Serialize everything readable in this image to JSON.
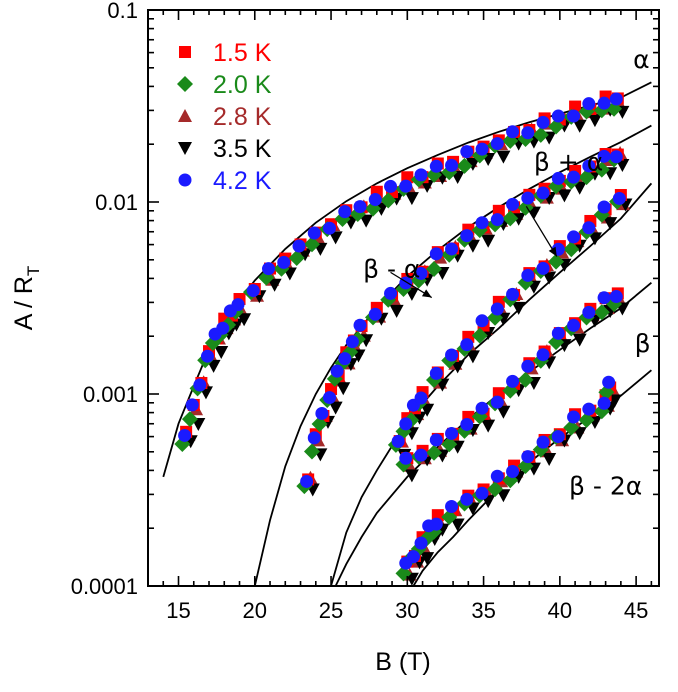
{
  "chart_data": {
    "type": "scatter",
    "title": "",
    "xlabel": "B (T)",
    "ylabel": "A / R",
    "ylabel_sub": "T",
    "xlim": [
      13,
      46.5
    ],
    "ylim": [
      0.0001,
      0.1
    ],
    "yscale": "log",
    "x_ticks": [
      15,
      20,
      25,
      30,
      35,
      40,
      45
    ],
    "x_tick_labels": [
      "15",
      "20",
      "25",
      "30",
      "35",
      "40",
      "45"
    ],
    "y_ticks": [
      0.0001,
      0.001,
      0.01,
      0.1
    ],
    "y_tick_labels": [
      "0.0001",
      "0.001",
      "0.01",
      "0.1"
    ],
    "legend": [
      {
        "label": "1.5 K",
        "color": "#ff0000",
        "marker": "square"
      },
      {
        "label": "2.0 K",
        "color": "#1a8a1a",
        "marker": "diamond"
      },
      {
        "label": "2.8 K",
        "color": "#a52a2a",
        "marker": "triangle-up"
      },
      {
        "label": "3.5 K",
        "color": "#000000",
        "marker": "triangle-down"
      },
      {
        "label": "4.2 K",
        "color": "#1a1aff",
        "marker": "circle"
      }
    ],
    "series": [
      {
        "name": "α",
        "fit_x": [
          14,
          15,
          16,
          17,
          18,
          20,
          22,
          24,
          26,
          28,
          30,
          32,
          34,
          36,
          38,
          40,
          42,
          44,
          46
        ],
        "fit_y": [
          0.00037,
          0.0007,
          0.0011,
          0.0017,
          0.0024,
          0.0039,
          0.0057,
          0.0078,
          0.0101,
          0.0125,
          0.015,
          0.0176,
          0.0204,
          0.0232,
          0.026,
          0.0288,
          0.0318,
          0.035,
          0.042
        ],
        "data_x": [
          15.5,
          16,
          16.5,
          17,
          17.5,
          18,
          18.5,
          19,
          20,
          21,
          22,
          23,
          24,
          25,
          26,
          27,
          28,
          29,
          30,
          31,
          32,
          33,
          34,
          35,
          36,
          37,
          38,
          39,
          40,
          41,
          42,
          43,
          43.8
        ],
        "data_y": [
          0.0006,
          0.0008,
          0.0011,
          0.0015,
          0.0019,
          0.0022,
          0.0025,
          0.0028,
          0.0034,
          0.0041,
          0.0048,
          0.0056,
          0.0064,
          0.0073,
          0.0082,
          0.0091,
          0.0101,
          0.011,
          0.012,
          0.0131,
          0.0143,
          0.0155,
          0.0168,
          0.0182,
          0.0197,
          0.0212,
          0.0228,
          0.0245,
          0.0262,
          0.028,
          0.0298,
          0.0317,
          0.0335
        ],
        "label_x": 44.8,
        "label_y": 0.05,
        "label": "α"
      },
      {
        "name": "β + α",
        "fit_x": [
          20,
          21,
          22,
          23,
          24,
          25,
          26,
          28,
          30,
          32,
          34,
          36,
          38,
          40,
          42,
          44,
          46
        ],
        "fit_y": [
          0.0001,
          0.00022,
          0.00042,
          0.00068,
          0.001,
          0.00137,
          0.0018,
          0.0028,
          0.0041,
          0.0056,
          0.0074,
          0.0094,
          0.0117,
          0.0143,
          0.0172,
          0.0205,
          0.025
        ],
        "data_x": [
          23.5,
          24,
          24.5,
          25,
          25.5,
          26,
          26.5,
          27,
          28,
          29,
          30,
          31,
          32,
          33,
          34,
          35,
          36,
          37,
          38,
          39,
          40,
          41,
          42,
          43,
          43.8
        ],
        "data_y": [
          0.00035,
          0.00055,
          0.00075,
          0.00095,
          0.0012,
          0.0015,
          0.0018,
          0.0021,
          0.0026,
          0.0031,
          0.0036,
          0.0042,
          0.0049,
          0.0056,
          0.0064,
          0.0072,
          0.0081,
          0.009,
          0.01,
          0.011,
          0.0121,
          0.0133,
          0.0147,
          0.016,
          0.0172
        ],
        "label_x": 38.3,
        "label_y": 0.0146,
        "label": "β + α"
      },
      {
        "name": "β - α",
        "fit_x": [
          25,
          26,
          27,
          28,
          30,
          32,
          34,
          36,
          38,
          40,
          42,
          44,
          46
        ],
        "fit_y": [
          0.0001,
          0.00019,
          0.00029,
          0.0004,
          0.00072,
          0.0011,
          0.0016,
          0.0022,
          0.0031,
          0.0043,
          0.0059,
          0.0082,
          0.0125
        ],
        "data_x": [
          29.5,
          30,
          30.5,
          31,
          32,
          33,
          34,
          35,
          36,
          37,
          38,
          39,
          40,
          41,
          42,
          43,
          44
        ],
        "data_y": [
          0.00055,
          0.00068,
          0.0008,
          0.00095,
          0.0012,
          0.0015,
          0.0018,
          0.0022,
          0.0027,
          0.0032,
          0.0038,
          0.0045,
          0.0053,
          0.0062,
          0.0073,
          0.0086,
          0.0102
        ],
        "label_x": 27.1,
        "label_y": 0.00405,
        "label": "β - α"
      },
      {
        "name": "β",
        "fit_x": [
          25.3,
          26,
          27,
          28,
          30,
          32,
          34,
          36,
          38,
          40,
          42,
          44,
          46
        ],
        "fit_y": [
          0.0001,
          0.00013,
          0.00018,
          0.00024,
          0.00037,
          0.00053,
          0.00074,
          0.001,
          0.0013,
          0.0017,
          0.0022,
          0.0028,
          0.0038
        ],
        "data_x": [
          30,
          31,
          32,
          33,
          34,
          35,
          36,
          37,
          38,
          39,
          40,
          41,
          42,
          43,
          43.8
        ],
        "data_y": [
          0.00043,
          0.00048,
          0.00053,
          0.0006,
          0.00068,
          0.00077,
          0.0009,
          0.0011,
          0.0013,
          0.0016,
          0.0019,
          0.0022,
          0.0026,
          0.0029,
          0.0032
        ],
        "label_x": 44.9,
        "label_y": 0.00165,
        "label": "β"
      },
      {
        "name": "β - 2α",
        "fit_x": [
          30.4,
          31,
          32,
          33,
          34,
          36,
          38,
          40,
          42,
          44,
          46
        ],
        "fit_y": [
          0.0001,
          0.00012,
          0.00015,
          0.00018,
          0.00022,
          0.00032,
          0.00044,
          0.00059,
          0.00076,
          0.00098,
          0.00133
        ],
        "data_x": [
          30,
          30.5,
          31,
          31.5,
          32,
          33,
          34,
          35,
          36,
          37,
          38,
          39,
          40,
          41,
          42,
          43,
          43.3
        ],
        "data_y": [
          0.00012,
          0.00014,
          0.00016,
          0.00019,
          0.00021,
          0.00024,
          0.00027,
          0.0003,
          0.00034,
          0.00039,
          0.00045,
          0.00052,
          0.0006,
          0.0007,
          0.0008,
          0.00088,
          0.00105
        ],
        "label_x": 40.6,
        "label_y": 0.0003,
        "label": "β - 2α"
      }
    ],
    "annotations": [
      {
        "text": "β + α",
        "arrow_from": [
          37.8,
          0.0095
        ],
        "arrow_to": [
          39.8,
          0.0052
        ]
      },
      {
        "text": "β - α",
        "arrow_from": [
          28.9,
          0.0043
        ],
        "arrow_to": [
          31.6,
          0.00318
        ]
      }
    ]
  }
}
